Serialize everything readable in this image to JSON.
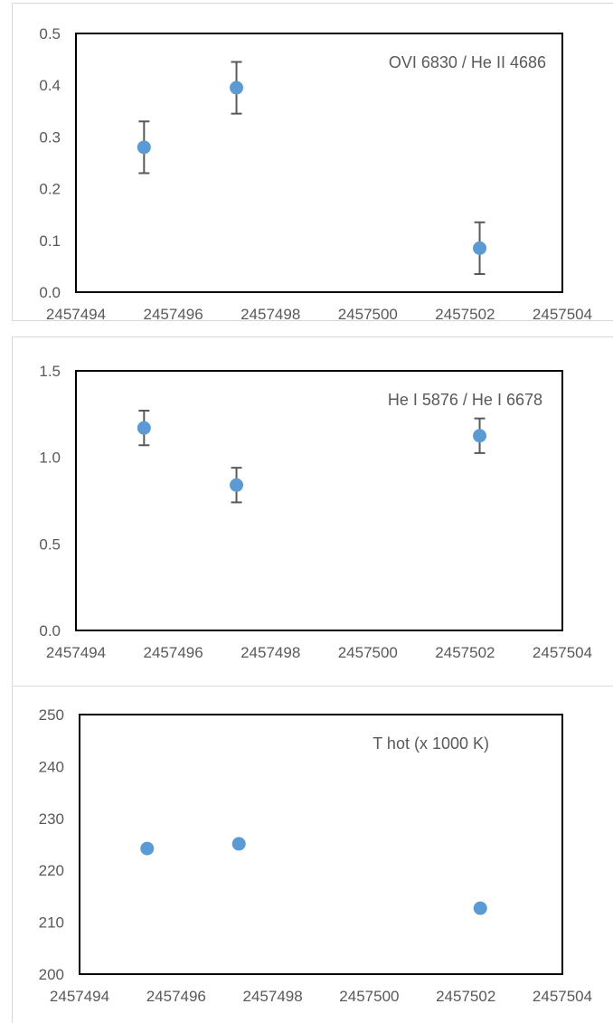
{
  "chart_data": [
    {
      "type": "scatter",
      "title": "OVI 6830 / He II 4686",
      "xlim": [
        2457494,
        2457504
      ],
      "xticks": [
        "2457494",
        "2457496",
        "2457498",
        "2457500",
        "2457502",
        "2457504"
      ],
      "ylim": [
        0.0,
        0.5
      ],
      "yticks": [
        "0.0",
        "0.1",
        "0.2",
        "0.3",
        "0.4",
        "0.5"
      ],
      "grid": false,
      "marker_color": "#5b9bd5",
      "errorbar_color": "#595959",
      "points": [
        {
          "x": 2457495.4,
          "y": 0.28,
          "yerr": 0.05
        },
        {
          "x": 2457497.3,
          "y": 0.395,
          "yerr": 0.05
        },
        {
          "x": 2457502.3,
          "y": 0.085,
          "yerr": 0.05
        }
      ]
    },
    {
      "type": "scatter",
      "title": "He I 5876 / He I 6678",
      "xlim": [
        2457494,
        2457504
      ],
      "xticks": [
        "2457494",
        "2457496",
        "2457498",
        "2457500",
        "2457502",
        "2457504"
      ],
      "ylim": [
        0.0,
        1.5
      ],
      "yticks": [
        "0.0",
        "0.5",
        "1.0",
        "1.5"
      ],
      "grid": false,
      "marker_color": "#5b9bd5",
      "errorbar_color": "#595959",
      "points": [
        {
          "x": 2457495.4,
          "y": 1.17,
          "yerr": 0.1
        },
        {
          "x": 2457497.3,
          "y": 0.84,
          "yerr": 0.1
        },
        {
          "x": 2457502.3,
          "y": 1.125,
          "yerr": 0.1
        }
      ]
    },
    {
      "type": "scatter",
      "title": "T hot (x 1000 K)",
      "xlim": [
        2457494,
        2457504
      ],
      "xticks": [
        "2457494",
        "2457496",
        "2457498",
        "2457500",
        "2457502",
        "2457504"
      ],
      "ylim": [
        200,
        250
      ],
      "yticks": [
        "200",
        "210",
        "220",
        "230",
        "240",
        "250"
      ],
      "grid": false,
      "marker_color": "#5b9bd5",
      "errorbar_color": "#595959",
      "points": [
        {
          "x": 2457495.4,
          "y": 224.2
        },
        {
          "x": 2457497.3,
          "y": 225.1
        },
        {
          "x": 2457502.3,
          "y": 212.7
        }
      ]
    }
  ]
}
